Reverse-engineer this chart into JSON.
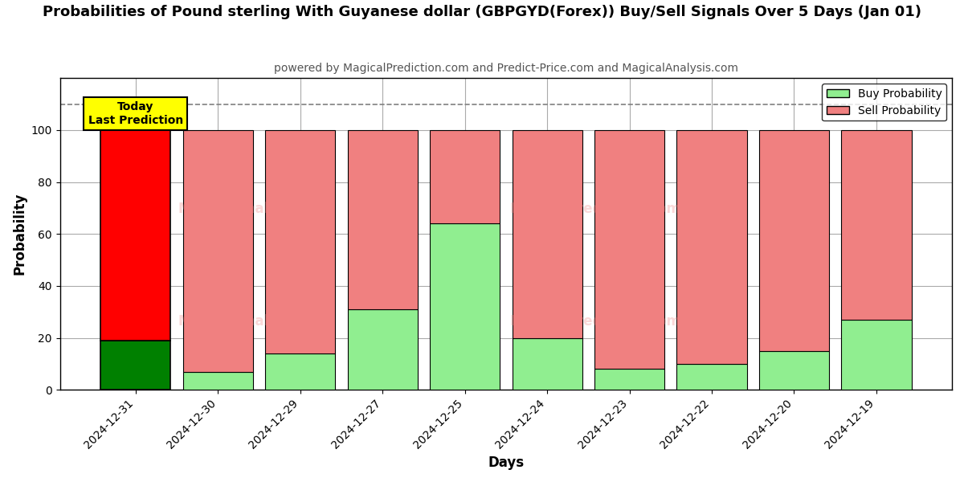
{
  "title": "Probabilities of Pound sterling With Guyanese dollar (GBPGYD(Forex)) Buy/Sell Signals Over 5 Days (Jan 01)",
  "subtitle": "powered by MagicalPrediction.com and Predict-Price.com and MagicalAnalysis.com",
  "xlabel": "Days",
  "ylabel": "Probability",
  "dates": [
    "2024-12-31",
    "2024-12-30",
    "2024-12-29",
    "2024-12-27",
    "2024-12-25",
    "2024-12-24",
    "2024-12-23",
    "2024-12-22",
    "2024-12-20",
    "2024-12-19"
  ],
  "buy_values": [
    19,
    7,
    14,
    31,
    64,
    20,
    8,
    10,
    15,
    27
  ],
  "sell_values": [
    81,
    93,
    86,
    69,
    36,
    80,
    92,
    90,
    85,
    73
  ],
  "buy_color_today": "#008000",
  "sell_color_today": "#ff0000",
  "buy_color_normal": "#90EE90",
  "sell_color_normal": "#F08080",
  "today_label": "Today\nLast Prediction",
  "legend_buy": "Buy Probability",
  "legend_sell": "Sell Probability",
  "dashed_line_y": 110,
  "ylim": [
    0,
    120
  ],
  "yticks": [
    0,
    20,
    40,
    60,
    80,
    100
  ],
  "facecolor": "#ffffff",
  "watermark_color": "#F08080",
  "watermark_alpha": 0.3,
  "bar_width": 0.85,
  "title_fontsize": 13,
  "subtitle_fontsize": 10,
  "axis_label_fontsize": 12
}
